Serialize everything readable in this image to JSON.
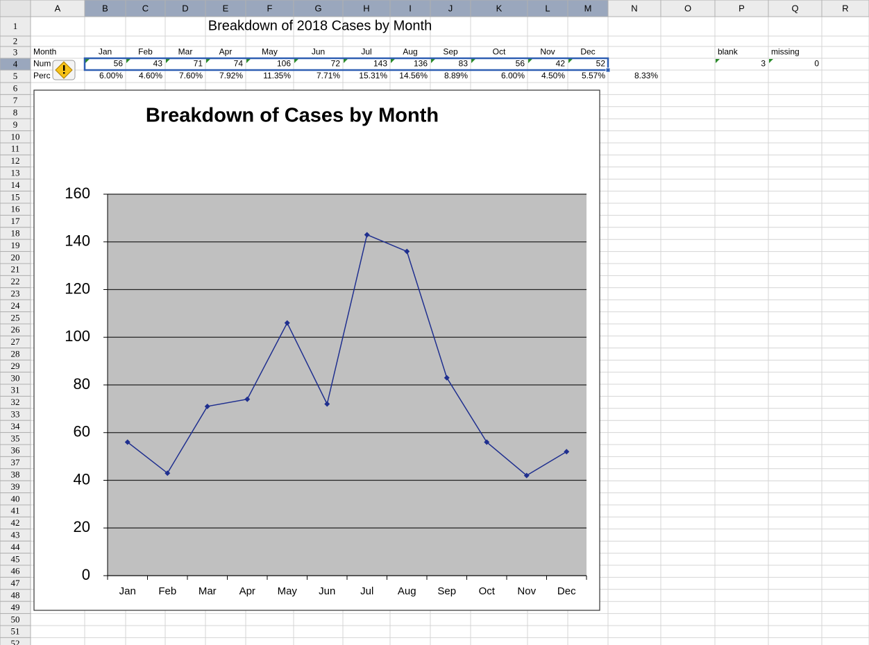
{
  "columns": [
    "A",
    "B",
    "C",
    "D",
    "E",
    "F",
    "G",
    "H",
    "I",
    "J",
    "K",
    "L",
    "M",
    "N",
    "O",
    "P",
    "Q",
    "R"
  ],
  "rows": [
    1,
    2,
    3,
    4,
    5,
    6,
    7,
    8,
    9,
    10,
    11,
    12,
    13,
    14,
    15,
    16,
    17,
    18,
    19,
    20,
    21,
    22,
    23,
    24,
    25,
    26,
    27,
    28,
    29,
    30,
    31,
    32,
    33,
    34,
    35,
    36,
    37,
    38,
    39,
    40,
    41,
    42,
    43,
    44,
    45,
    46,
    47,
    48,
    49,
    50,
    51,
    52
  ],
  "cells": {
    "title": "Breakdown of 2018 Cases by Month",
    "row3": [
      "Month",
      "Jan",
      "Feb",
      "Mar",
      "Apr",
      "May",
      "Jun",
      "Jul",
      "Aug",
      "Sep",
      "Oct",
      "Nov",
      "Dec"
    ],
    "row4": [
      "Num",
      56,
      43,
      71,
      74,
      106,
      72,
      143,
      136,
      83,
      56,
      42,
      52
    ],
    "row5": [
      "Perc",
      "6.00%",
      "4.60%",
      "7.60%",
      "7.92%",
      "11.35%",
      "7.71%",
      "15.31%",
      "14.56%",
      "8.89%",
      "6.00%",
      "4.50%",
      "5.57%"
    ],
    "n5": "8.33%",
    "p3": "blank",
    "q3": "missing",
    "p4": 3,
    "q4": 0
  },
  "chart_data": {
    "type": "line",
    "title": "Breakdown of Cases by Month",
    "categories": [
      "Jan",
      "Feb",
      "Mar",
      "Apr",
      "May",
      "Jun",
      "Jul",
      "Aug",
      "Sep",
      "Oct",
      "Nov",
      "Dec"
    ],
    "series": [
      {
        "color": "#1f2f8f",
        "values": [
          56,
          43,
          71,
          74,
          106,
          72,
          143,
          136,
          83,
          56,
          42,
          52
        ]
      }
    ],
    "ylim": [
      0,
      160
    ],
    "yticks": [
      0,
      20,
      40,
      60,
      80,
      100,
      120,
      140,
      160
    ],
    "grid": true
  }
}
